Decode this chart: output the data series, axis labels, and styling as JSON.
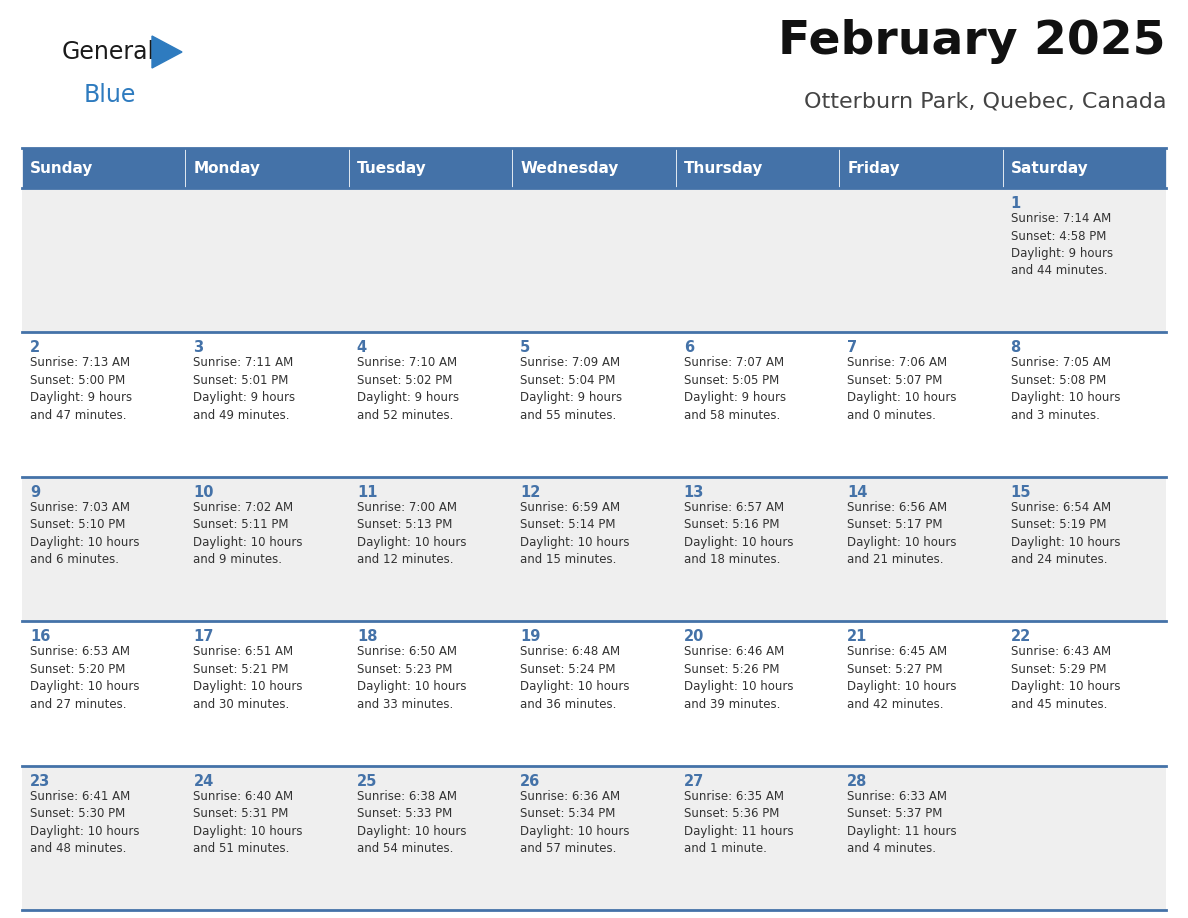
{
  "title": "February 2025",
  "subtitle": "Otterburn Park, Quebec, Canada",
  "header_bg_color": "#4472a8",
  "header_text_color": "#ffffff",
  "day_names": [
    "Sunday",
    "Monday",
    "Tuesday",
    "Wednesday",
    "Thursday",
    "Friday",
    "Saturday"
  ],
  "cell_bg_gray": "#efefef",
  "cell_bg_white": "#ffffff",
  "cell_border_color": "#4472a8",
  "day_number_color": "#4472a8",
  "text_color": "#333333",
  "logo_general_color": "#1a1a1a",
  "logo_blue_color": "#2e7bbf",
  "title_color": "#111111",
  "subtitle_color": "#444444",
  "days": [
    {
      "day": 1,
      "col": 6,
      "row": 0,
      "sunrise": "7:14 AM",
      "sunset": "4:58 PM",
      "daylight": "9 hours and 44 minutes."
    },
    {
      "day": 2,
      "col": 0,
      "row": 1,
      "sunrise": "7:13 AM",
      "sunset": "5:00 PM",
      "daylight": "9 hours and 47 minutes."
    },
    {
      "day": 3,
      "col": 1,
      "row": 1,
      "sunrise": "7:11 AM",
      "sunset": "5:01 PM",
      "daylight": "9 hours and 49 minutes."
    },
    {
      "day": 4,
      "col": 2,
      "row": 1,
      "sunrise": "7:10 AM",
      "sunset": "5:02 PM",
      "daylight": "9 hours and 52 minutes."
    },
    {
      "day": 5,
      "col": 3,
      "row": 1,
      "sunrise": "7:09 AM",
      "sunset": "5:04 PM",
      "daylight": "9 hours and 55 minutes."
    },
    {
      "day": 6,
      "col": 4,
      "row": 1,
      "sunrise": "7:07 AM",
      "sunset": "5:05 PM",
      "daylight": "9 hours and 58 minutes."
    },
    {
      "day": 7,
      "col": 5,
      "row": 1,
      "sunrise": "7:06 AM",
      "sunset": "5:07 PM",
      "daylight": "10 hours and 0 minutes."
    },
    {
      "day": 8,
      "col": 6,
      "row": 1,
      "sunrise": "7:05 AM",
      "sunset": "5:08 PM",
      "daylight": "10 hours and 3 minutes."
    },
    {
      "day": 9,
      "col": 0,
      "row": 2,
      "sunrise": "7:03 AM",
      "sunset": "5:10 PM",
      "daylight": "10 hours and 6 minutes."
    },
    {
      "day": 10,
      "col": 1,
      "row": 2,
      "sunrise": "7:02 AM",
      "sunset": "5:11 PM",
      "daylight": "10 hours and 9 minutes."
    },
    {
      "day": 11,
      "col": 2,
      "row": 2,
      "sunrise": "7:00 AM",
      "sunset": "5:13 PM",
      "daylight": "10 hours and 12 minutes."
    },
    {
      "day": 12,
      "col": 3,
      "row": 2,
      "sunrise": "6:59 AM",
      "sunset": "5:14 PM",
      "daylight": "10 hours and 15 minutes."
    },
    {
      "day": 13,
      "col": 4,
      "row": 2,
      "sunrise": "6:57 AM",
      "sunset": "5:16 PM",
      "daylight": "10 hours and 18 minutes."
    },
    {
      "day": 14,
      "col": 5,
      "row": 2,
      "sunrise": "6:56 AM",
      "sunset": "5:17 PM",
      "daylight": "10 hours and 21 minutes."
    },
    {
      "day": 15,
      "col": 6,
      "row": 2,
      "sunrise": "6:54 AM",
      "sunset": "5:19 PM",
      "daylight": "10 hours and 24 minutes."
    },
    {
      "day": 16,
      "col": 0,
      "row": 3,
      "sunrise": "6:53 AM",
      "sunset": "5:20 PM",
      "daylight": "10 hours and 27 minutes."
    },
    {
      "day": 17,
      "col": 1,
      "row": 3,
      "sunrise": "6:51 AM",
      "sunset": "5:21 PM",
      "daylight": "10 hours and 30 minutes."
    },
    {
      "day": 18,
      "col": 2,
      "row": 3,
      "sunrise": "6:50 AM",
      "sunset": "5:23 PM",
      "daylight": "10 hours and 33 minutes."
    },
    {
      "day": 19,
      "col": 3,
      "row": 3,
      "sunrise": "6:48 AM",
      "sunset": "5:24 PM",
      "daylight": "10 hours and 36 minutes."
    },
    {
      "day": 20,
      "col": 4,
      "row": 3,
      "sunrise": "6:46 AM",
      "sunset": "5:26 PM",
      "daylight": "10 hours and 39 minutes."
    },
    {
      "day": 21,
      "col": 5,
      "row": 3,
      "sunrise": "6:45 AM",
      "sunset": "5:27 PM",
      "daylight": "10 hours and 42 minutes."
    },
    {
      "day": 22,
      "col": 6,
      "row": 3,
      "sunrise": "6:43 AM",
      "sunset": "5:29 PM",
      "daylight": "10 hours and 45 minutes."
    },
    {
      "day": 23,
      "col": 0,
      "row": 4,
      "sunrise": "6:41 AM",
      "sunset": "5:30 PM",
      "daylight": "10 hours and 48 minutes."
    },
    {
      "day": 24,
      "col": 1,
      "row": 4,
      "sunrise": "6:40 AM",
      "sunset": "5:31 PM",
      "daylight": "10 hours and 51 minutes."
    },
    {
      "day": 25,
      "col": 2,
      "row": 4,
      "sunrise": "6:38 AM",
      "sunset": "5:33 PM",
      "daylight": "10 hours and 54 minutes."
    },
    {
      "day": 26,
      "col": 3,
      "row": 4,
      "sunrise": "6:36 AM",
      "sunset": "5:34 PM",
      "daylight": "10 hours and 57 minutes."
    },
    {
      "day": 27,
      "col": 4,
      "row": 4,
      "sunrise": "6:35 AM",
      "sunset": "5:36 PM",
      "daylight": "11 hours and 1 minute."
    },
    {
      "day": 28,
      "col": 5,
      "row": 4,
      "sunrise": "6:33 AM",
      "sunset": "5:37 PM",
      "daylight": "11 hours and 4 minutes."
    }
  ]
}
